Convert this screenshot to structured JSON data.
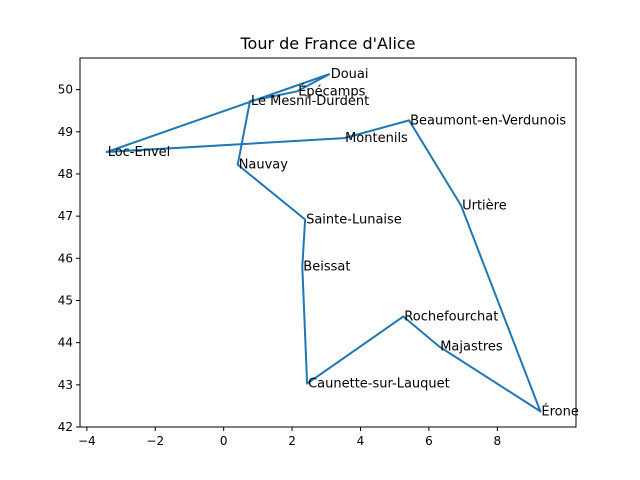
{
  "chart_data": {
    "type": "line",
    "title": "Tour de France d'Alice",
    "xlabel": "",
    "ylabel": "",
    "xlim": [
      -4.2,
      10.3
    ],
    "ylim": [
      42.0,
      50.75
    ],
    "grid": false,
    "line_color": "#1f77b4",
    "x_ticks": [
      -4,
      -2,
      0,
      2,
      4,
      6,
      8
    ],
    "x_tick_labels": [
      "−4",
      "−2",
      "0",
      "2",
      "4",
      "6",
      "8"
    ],
    "y_ticks": [
      42,
      43,
      44,
      45,
      46,
      47,
      48,
      49,
      50
    ],
    "y_tick_labels": [
      "42",
      "43",
      "44",
      "45",
      "46",
      "47",
      "48",
      "49",
      "50"
    ],
    "points": [
      {
        "label": "Douai",
        "x": 3.1,
        "y": 50.37
      },
      {
        "label": "Épécamps",
        "x": 2.15,
        "y": 49.96
      },
      {
        "label": "Le Mesnil-Durdent",
        "x": 0.77,
        "y": 49.73
      },
      {
        "label": "Nauvay",
        "x": 0.41,
        "y": 48.22
      },
      {
        "label": "Sainte-Lunaise",
        "x": 2.38,
        "y": 46.92
      },
      {
        "label": "Beissat",
        "x": 2.3,
        "y": 45.8
      },
      {
        "label": "Caunette-sur-Lauquet",
        "x": 2.44,
        "y": 43.03
      },
      {
        "label": "Rochefourchat",
        "x": 5.25,
        "y": 44.62
      },
      {
        "label": "Majastres",
        "x": 6.3,
        "y": 43.91
      },
      {
        "label": "Érone",
        "x": 9.26,
        "y": 42.37
      },
      {
        "label": "Urtière",
        "x": 6.94,
        "y": 47.25
      },
      {
        "label": "Beaumont-en-Verdunois",
        "x": 5.42,
        "y": 49.27
      },
      {
        "label": "Montenils",
        "x": 3.52,
        "y": 48.85
      },
      {
        "label": "Loc-Envel",
        "x": -3.42,
        "y": 48.52
      }
    ],
    "closing_segment": {
      "from": "Loc-Envel",
      "to": "Douai"
    }
  }
}
